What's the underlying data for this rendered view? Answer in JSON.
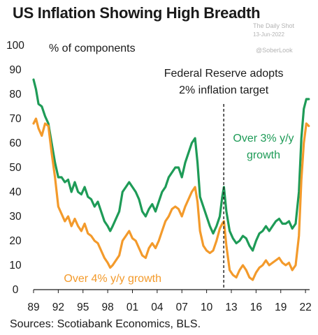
{
  "chart_data": {
    "type": "line",
    "title": "US Inflation Showing High Breadth",
    "ylabel": "% of components",
    "ylim": [
      0,
      100
    ],
    "xlim": [
      1989,
      2022.5
    ],
    "y_ticks": [
      "0",
      "10",
      "20",
      "30",
      "40",
      "50",
      "60",
      "70",
      "80",
      "90",
      "100"
    ],
    "x_ticks": [
      {
        "x": 1989,
        "label": "89"
      },
      {
        "x": 1992,
        "label": "92"
      },
      {
        "x": 1995,
        "label": "95"
      },
      {
        "x": 1998,
        "label": "98"
      },
      {
        "x": 2001,
        "label": "01"
      },
      {
        "x": 2004,
        "label": "04"
      },
      {
        "x": 2007,
        "label": "07"
      },
      {
        "x": 2010,
        "label": "10"
      },
      {
        "x": 2013,
        "label": "13"
      },
      {
        "x": 2016,
        "label": "16"
      },
      {
        "x": 2019,
        "label": "19"
      },
      {
        "x": 2022,
        "label": "22"
      }
    ],
    "grid": false,
    "series": [
      {
        "name": "Over 3% y/y growth",
        "color": "#1e9b57",
        "points": [
          [
            1989.0,
            86
          ],
          [
            1989.3,
            82
          ],
          [
            1989.6,
            76
          ],
          [
            1990.0,
            75
          ],
          [
            1990.4,
            71
          ],
          [
            1990.8,
            68
          ],
          [
            1991.2,
            60
          ],
          [
            1991.6,
            52
          ],
          [
            1992.0,
            46
          ],
          [
            1992.4,
            46
          ],
          [
            1992.8,
            44
          ],
          [
            1993.2,
            45
          ],
          [
            1993.6,
            40
          ],
          [
            1994.0,
            44
          ],
          [
            1994.4,
            40
          ],
          [
            1994.8,
            39
          ],
          [
            1995.2,
            42
          ],
          [
            1995.6,
            38
          ],
          [
            1996.0,
            37
          ],
          [
            1996.4,
            34
          ],
          [
            1996.8,
            36
          ],
          [
            1997.2,
            32
          ],
          [
            1997.6,
            28
          ],
          [
            1998.0,
            26
          ],
          [
            1998.3,
            24
          ],
          [
            1998.6,
            26
          ],
          [
            1999.0,
            29
          ],
          [
            1999.4,
            32
          ],
          [
            1999.8,
            40
          ],
          [
            2000.2,
            42
          ],
          [
            2000.6,
            44
          ],
          [
            2001.0,
            42
          ],
          [
            2001.4,
            40
          ],
          [
            2001.8,
            37
          ],
          [
            2002.2,
            32
          ],
          [
            2002.6,
            30
          ],
          [
            2003.0,
            33
          ],
          [
            2003.4,
            35
          ],
          [
            2003.8,
            32
          ],
          [
            2004.2,
            36
          ],
          [
            2004.6,
            40
          ],
          [
            2005.0,
            42
          ],
          [
            2005.4,
            46
          ],
          [
            2005.8,
            48
          ],
          [
            2006.2,
            50
          ],
          [
            2006.6,
            50
          ],
          [
            2007.0,
            46
          ],
          [
            2007.4,
            52
          ],
          [
            2007.8,
            56
          ],
          [
            2008.2,
            60
          ],
          [
            2008.6,
            62
          ],
          [
            2008.9,
            52
          ],
          [
            2009.2,
            38
          ],
          [
            2009.6,
            34
          ],
          [
            2010.0,
            30
          ],
          [
            2010.4,
            26
          ],
          [
            2010.8,
            23
          ],
          [
            2011.2,
            26
          ],
          [
            2011.6,
            30
          ],
          [
            2011.9,
            38
          ],
          [
            2012.1,
            42
          ],
          [
            2012.4,
            32
          ],
          [
            2012.8,
            24
          ],
          [
            2013.2,
            21
          ],
          [
            2013.6,
            19
          ],
          [
            2014.0,
            20
          ],
          [
            2014.4,
            22
          ],
          [
            2014.8,
            21
          ],
          [
            2015.2,
            18
          ],
          [
            2015.6,
            16
          ],
          [
            2016.0,
            20
          ],
          [
            2016.4,
            23
          ],
          [
            2016.8,
            24
          ],
          [
            2017.2,
            26
          ],
          [
            2017.6,
            24
          ],
          [
            2018.0,
            26
          ],
          [
            2018.4,
            28
          ],
          [
            2018.8,
            29
          ],
          [
            2019.2,
            27
          ],
          [
            2019.6,
            27
          ],
          [
            2020.0,
            28
          ],
          [
            2020.4,
            25
          ],
          [
            2020.8,
            27
          ],
          [
            2021.2,
            40
          ],
          [
            2021.5,
            62
          ],
          [
            2021.8,
            74
          ],
          [
            2022.1,
            78
          ],
          [
            2022.4,
            78
          ]
        ]
      },
      {
        "name": "Over 4% y/y growth",
        "color": "#f39a2b",
        "points": [
          [
            1989.0,
            68
          ],
          [
            1989.3,
            70
          ],
          [
            1989.6,
            66
          ],
          [
            1990.0,
            63
          ],
          [
            1990.4,
            68
          ],
          [
            1990.8,
            67
          ],
          [
            1991.2,
            56
          ],
          [
            1991.6,
            46
          ],
          [
            1992.0,
            34
          ],
          [
            1992.4,
            31
          ],
          [
            1992.8,
            28
          ],
          [
            1993.2,
            30
          ],
          [
            1993.6,
            26
          ],
          [
            1994.0,
            29
          ],
          [
            1994.4,
            26
          ],
          [
            1994.8,
            24
          ],
          [
            1995.2,
            27
          ],
          [
            1995.6,
            23
          ],
          [
            1996.0,
            22
          ],
          [
            1996.4,
            20
          ],
          [
            1996.8,
            19
          ],
          [
            1997.2,
            16
          ],
          [
            1997.6,
            13
          ],
          [
            1998.0,
            11
          ],
          [
            1998.3,
            9
          ],
          [
            1998.6,
            10
          ],
          [
            1999.0,
            12
          ],
          [
            1999.4,
            14
          ],
          [
            1999.8,
            20
          ],
          [
            2000.2,
            22
          ],
          [
            2000.6,
            24
          ],
          [
            2001.0,
            21
          ],
          [
            2001.4,
            20
          ],
          [
            2001.8,
            17
          ],
          [
            2002.2,
            14
          ],
          [
            2002.6,
            13
          ],
          [
            2003.0,
            17
          ],
          [
            2003.4,
            19
          ],
          [
            2003.8,
            17
          ],
          [
            2004.2,
            20
          ],
          [
            2004.6,
            24
          ],
          [
            2005.0,
            28
          ],
          [
            2005.4,
            30
          ],
          [
            2005.8,
            33
          ],
          [
            2006.2,
            34
          ],
          [
            2006.6,
            33
          ],
          [
            2007.0,
            30
          ],
          [
            2007.4,
            34
          ],
          [
            2007.8,
            37
          ],
          [
            2008.2,
            40
          ],
          [
            2008.6,
            42
          ],
          [
            2008.9,
            36
          ],
          [
            2009.2,
            24
          ],
          [
            2009.6,
            18
          ],
          [
            2010.0,
            16
          ],
          [
            2010.4,
            15
          ],
          [
            2010.8,
            16
          ],
          [
            2011.2,
            20
          ],
          [
            2011.6,
            25
          ],
          [
            2011.9,
            27
          ],
          [
            2012.1,
            28
          ],
          [
            2012.4,
            18
          ],
          [
            2012.8,
            8
          ],
          [
            2013.2,
            6
          ],
          [
            2013.6,
            5
          ],
          [
            2014.0,
            8
          ],
          [
            2014.4,
            10
          ],
          [
            2014.8,
            8
          ],
          [
            2015.2,
            5
          ],
          [
            2015.6,
            4
          ],
          [
            2016.0,
            7
          ],
          [
            2016.4,
            9
          ],
          [
            2016.8,
            10
          ],
          [
            2017.2,
            12
          ],
          [
            2017.6,
            10
          ],
          [
            2018.0,
            11
          ],
          [
            2018.4,
            12
          ],
          [
            2018.8,
            13
          ],
          [
            2019.2,
            11
          ],
          [
            2019.6,
            10
          ],
          [
            2020.0,
            11
          ],
          [
            2020.4,
            8
          ],
          [
            2020.8,
            10
          ],
          [
            2021.2,
            22
          ],
          [
            2021.5,
            45
          ],
          [
            2021.8,
            60
          ],
          [
            2022.1,
            68
          ],
          [
            2022.4,
            67
          ]
        ]
      }
    ],
    "annotations": {
      "event_line1": "Federal Reserve adopts",
      "event_line2": "2% inflation target",
      "event_x": 2012.08,
      "green_label_line1": "Over 3% y/y",
      "green_label_line2": "growth",
      "orange_label": "Over 4% y/y growth"
    },
    "unit_label": "% of components",
    "source": "Sources: Scotiabank Economics, BLS."
  },
  "watermark": {
    "line1": "The Daily Shot",
    "line2": "13-Jun-2022",
    "line3": "@SoberLook"
  }
}
